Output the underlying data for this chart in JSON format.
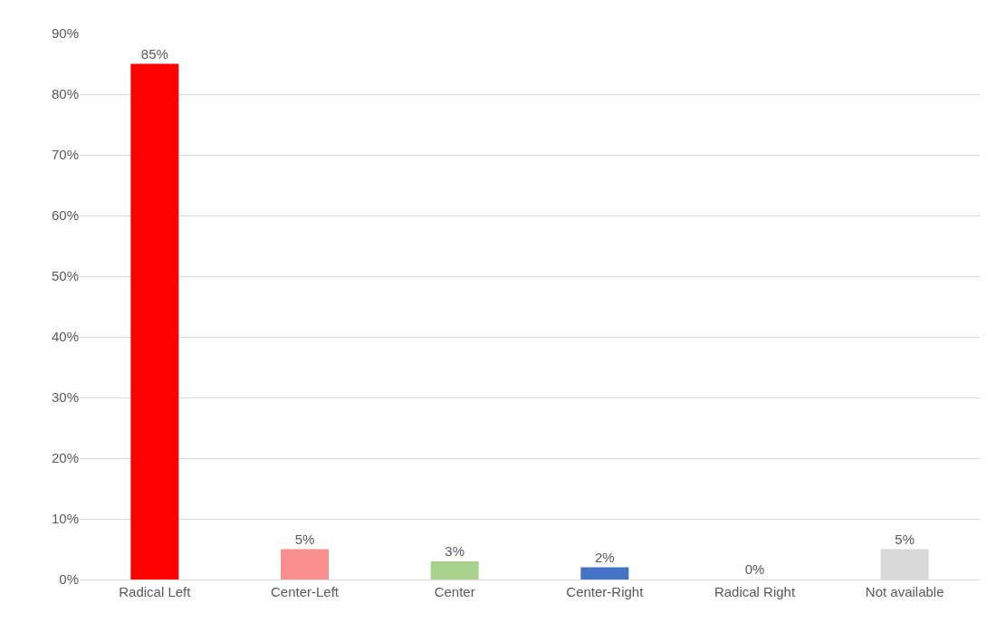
{
  "chart_data": {
    "type": "bar",
    "categories": [
      "Radical Left",
      "Center-Left",
      "Center",
      "Center-Right",
      "Radical Right",
      "Not available"
    ],
    "values": [
      85,
      5,
      3,
      2,
      0,
      5
    ],
    "colors": [
      "#ff0000",
      "#f98f8c",
      "#a9d18e",
      "#4472c4",
      "#d9d9d9",
      "#d9d9d9"
    ],
    "value_labels": [
      "85%",
      "5%",
      "3%",
      "2%",
      "0%",
      "5%"
    ],
    "ylim": [
      0,
      90
    ],
    "yticks": [
      {
        "value": 0,
        "label": "0%"
      },
      {
        "value": 10,
        "label": "10%"
      },
      {
        "value": 20,
        "label": "20%"
      },
      {
        "value": 30,
        "label": "30%"
      },
      {
        "value": 40,
        "label": "40%"
      },
      {
        "value": 50,
        "label": "50%"
      },
      {
        "value": 60,
        "label": "60%"
      },
      {
        "value": 70,
        "label": "70%"
      },
      {
        "value": 80,
        "label": "80%"
      },
      {
        "value": 90,
        "label": "90%"
      }
    ],
    "grid": "y"
  }
}
